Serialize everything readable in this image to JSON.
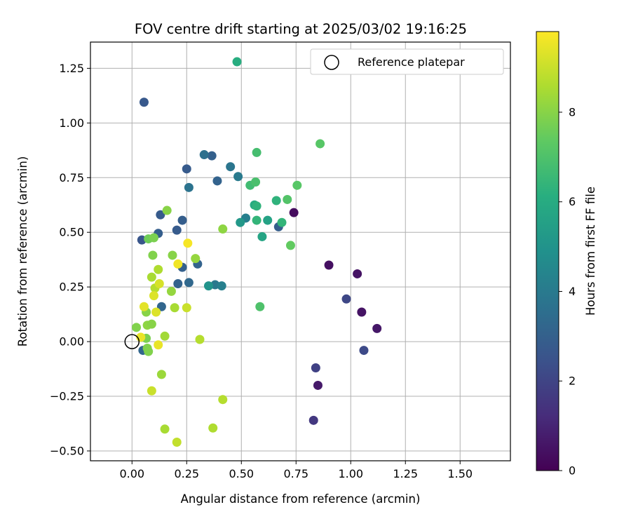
{
  "chart_data": {
    "type": "scatter",
    "title": "FOV centre drift starting at 2025/03/02 19:16:25",
    "xlabel": "Angular distance from reference (arcmin)",
    "ylabel": "Rotation from reference (arcmin)",
    "xlim": [
      -0.19,
      1.73
    ],
    "ylim": [
      -0.545,
      1.37
    ],
    "xticks": [
      "0.00",
      "0.25",
      "0.50",
      "0.75",
      "1.00",
      "1.25",
      "1.50"
    ],
    "yticks": [
      "−0.50",
      "−0.25",
      "0.00",
      "0.25",
      "0.50",
      "0.75",
      "1.00",
      "1.25"
    ],
    "grid": true,
    "legend": {
      "placement": "top-right",
      "entries": [
        "Reference platepar"
      ]
    },
    "reference_point": {
      "x": 0.0,
      "y": 0.0
    },
    "colorbar": {
      "label": "Hours from first FF file",
      "range": [
        0,
        9.8
      ],
      "ticks": [
        "0",
        "2",
        "4",
        "6",
        "8"
      ],
      "colormap": "viridis"
    },
    "color_variable": "hours",
    "points": [
      {
        "x": 0.74,
        "y": 0.59,
        "c": 0.3
      },
      {
        "x": 0.9,
        "y": 0.35,
        "c": 0.4
      },
      {
        "x": 1.03,
        "y": 0.31,
        "c": 0.5
      },
      {
        "x": 1.05,
        "y": 0.135,
        "c": 0.5
      },
      {
        "x": 1.12,
        "y": 0.06,
        "c": 0.6
      },
      {
        "x": 0.85,
        "y": -0.2,
        "c": 0.7
      },
      {
        "x": 0.83,
        "y": -0.36,
        "c": 1.6
      },
      {
        "x": 0.84,
        "y": -0.12,
        "c": 1.9
      },
      {
        "x": 1.06,
        "y": -0.04,
        "c": 2.2
      },
      {
        "x": 0.98,
        "y": 0.195,
        "c": 2.1
      },
      {
        "x": 0.67,
        "y": 0.525,
        "c": 2.9
      },
      {
        "x": 0.055,
        "y": 1.095,
        "c": 2.7
      },
      {
        "x": 0.25,
        "y": 0.79,
        "c": 2.8
      },
      {
        "x": 0.365,
        "y": 0.85,
        "c": 3.0
      },
      {
        "x": 0.39,
        "y": 0.735,
        "c": 3.1
      },
      {
        "x": 0.045,
        "y": 0.465,
        "c": 2.6
      },
      {
        "x": 0.12,
        "y": 0.495,
        "c": 2.9
      },
      {
        "x": 0.13,
        "y": 0.58,
        "c": 2.8
      },
      {
        "x": 0.23,
        "y": 0.555,
        "c": 2.9
      },
      {
        "x": 0.205,
        "y": 0.51,
        "c": 2.8
      },
      {
        "x": 0.23,
        "y": 0.34,
        "c": 3.0
      },
      {
        "x": 0.21,
        "y": 0.265,
        "c": 3.1
      },
      {
        "x": 0.26,
        "y": 0.27,
        "c": 3.3
      },
      {
        "x": 0.3,
        "y": 0.355,
        "c": 3.1
      },
      {
        "x": 0.135,
        "y": 0.16,
        "c": 3.2
      },
      {
        "x": 0.05,
        "y": -0.04,
        "c": 3.2
      },
      {
        "x": 0.33,
        "y": 0.855,
        "c": 3.6
      },
      {
        "x": 0.26,
        "y": 0.705,
        "c": 3.7
      },
      {
        "x": 0.45,
        "y": 0.8,
        "c": 3.8
      },
      {
        "x": 0.485,
        "y": 0.755,
        "c": 4.0
      },
      {
        "x": 0.38,
        "y": 0.26,
        "c": 3.9
      },
      {
        "x": 0.41,
        "y": 0.255,
        "c": 4.2
      },
      {
        "x": 0.52,
        "y": 0.565,
        "c": 4.2
      },
      {
        "x": 0.35,
        "y": 0.255,
        "c": 5.0
      },
      {
        "x": 0.495,
        "y": 0.545,
        "c": 5.2
      },
      {
        "x": 0.62,
        "y": 0.555,
        "c": 5.6
      },
      {
        "x": 0.595,
        "y": 0.48,
        "c": 5.7
      },
      {
        "x": 0.56,
        "y": 0.625,
        "c": 6.0
      },
      {
        "x": 0.57,
        "y": 0.62,
        "c": 6.3
      },
      {
        "x": 0.57,
        "y": 0.555,
        "c": 6.4
      },
      {
        "x": 0.66,
        "y": 0.645,
        "c": 6.3
      },
      {
        "x": 0.685,
        "y": 0.545,
        "c": 6.4
      },
      {
        "x": 0.48,
        "y": 1.28,
        "c": 6.1
      },
      {
        "x": 0.57,
        "y": 0.865,
        "c": 6.8
      },
      {
        "x": 0.54,
        "y": 0.715,
        "c": 6.7
      },
      {
        "x": 0.565,
        "y": 0.73,
        "c": 6.9
      },
      {
        "x": 0.71,
        "y": 0.65,
        "c": 7.1
      },
      {
        "x": 0.755,
        "y": 0.715,
        "c": 7.2
      },
      {
        "x": 0.86,
        "y": 0.905,
        "c": 7.2
      },
      {
        "x": 0.585,
        "y": 0.16,
        "c": 7.0
      },
      {
        "x": 0.725,
        "y": 0.44,
        "c": 7.4
      },
      {
        "x": 0.075,
        "y": 0.47,
        "c": 7.6
      },
      {
        "x": 0.1,
        "y": 0.475,
        "c": 7.8
      },
      {
        "x": 0.16,
        "y": 0.6,
        "c": 8.0
      },
      {
        "x": 0.095,
        "y": 0.395,
        "c": 7.9
      },
      {
        "x": 0.185,
        "y": 0.395,
        "c": 8.0
      },
      {
        "x": 0.415,
        "y": 0.515,
        "c": 8.1
      },
      {
        "x": 0.29,
        "y": 0.38,
        "c": 8.2
      },
      {
        "x": 0.02,
        "y": 0.065,
        "c": 7.9
      },
      {
        "x": 0.065,
        "y": 0.015,
        "c": 7.8
      },
      {
        "x": 0.07,
        "y": -0.03,
        "c": 7.9
      },
      {
        "x": 0.075,
        "y": -0.045,
        "c": 7.9
      },
      {
        "x": 0.065,
        "y": 0.135,
        "c": 8.0
      },
      {
        "x": 0.07,
        "y": 0.075,
        "c": 8.1
      },
      {
        "x": 0.09,
        "y": 0.08,
        "c": 8.0
      },
      {
        "x": 0.18,
        "y": 0.23,
        "c": 8.2
      },
      {
        "x": 0.195,
        "y": 0.155,
        "c": 8.5
      },
      {
        "x": 0.09,
        "y": 0.295,
        "c": 8.5
      },
      {
        "x": 0.12,
        "y": 0.33,
        "c": 8.6
      },
      {
        "x": 0.105,
        "y": 0.245,
        "c": 8.7
      },
      {
        "x": 0.15,
        "y": 0.025,
        "c": 8.4
      },
      {
        "x": 0.135,
        "y": -0.15,
        "c": 8.3
      },
      {
        "x": 0.31,
        "y": 0.01,
        "c": 8.7
      },
      {
        "x": 0.415,
        "y": -0.265,
        "c": 8.7
      },
      {
        "x": 0.15,
        "y": -0.4,
        "c": 8.5
      },
      {
        "x": 0.37,
        "y": -0.395,
        "c": 8.6
      },
      {
        "x": 0.205,
        "y": -0.46,
        "c": 8.9
      },
      {
        "x": 0.09,
        "y": -0.225,
        "c": 9.0
      },
      {
        "x": 0.25,
        "y": 0.155,
        "c": 9.0
      },
      {
        "x": 0.125,
        "y": 0.265,
        "c": 9.2
      },
      {
        "x": 0.1,
        "y": 0.21,
        "c": 9.3
      },
      {
        "x": 0.11,
        "y": 0.135,
        "c": 9.3
      },
      {
        "x": 0.055,
        "y": 0.16,
        "c": 9.4
      },
      {
        "x": 0.04,
        "y": 0.02,
        "c": 9.5
      },
      {
        "x": 0.12,
        "y": -0.015,
        "c": 9.5
      },
      {
        "x": 0.21,
        "y": 0.355,
        "c": 9.6
      },
      {
        "x": 0.255,
        "y": 0.45,
        "c": 9.7
      }
    ]
  }
}
